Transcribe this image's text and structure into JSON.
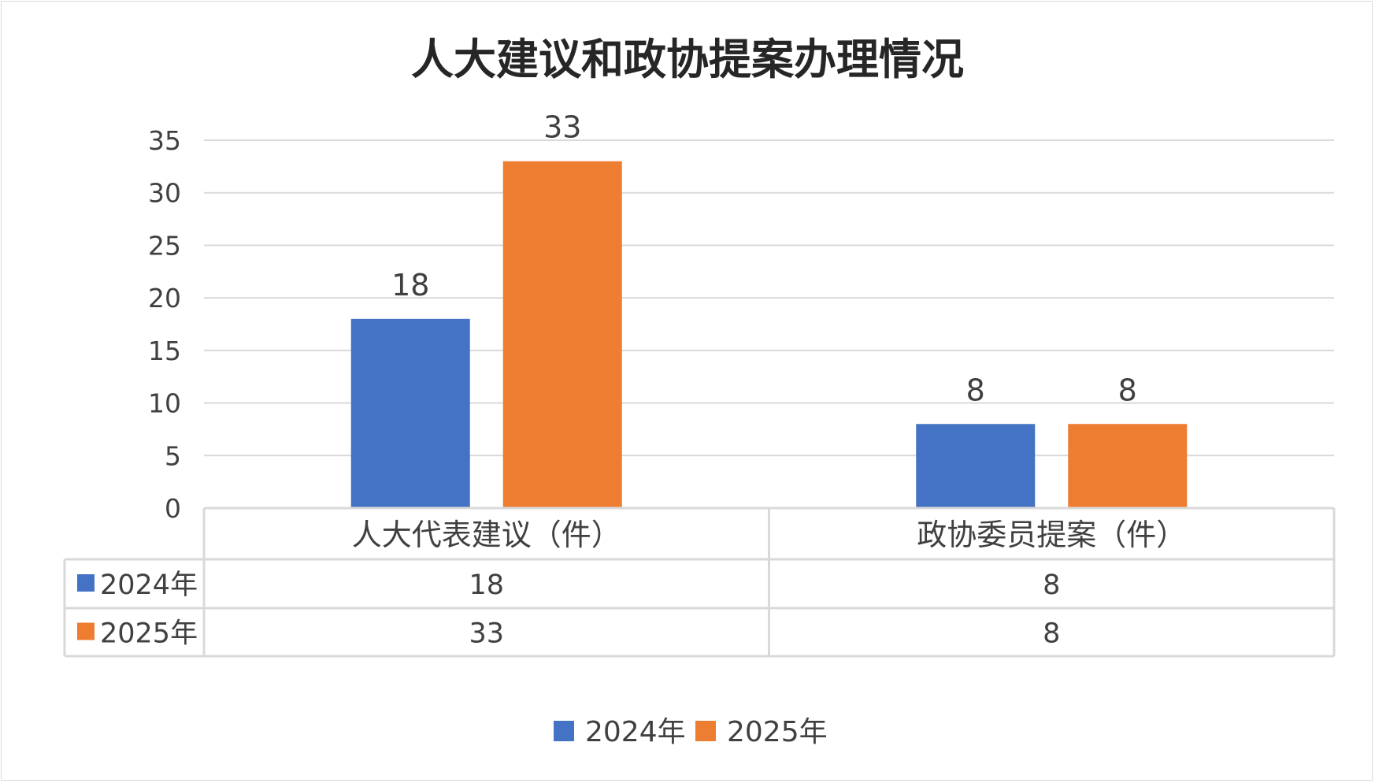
{
  "chart_data": {
    "type": "bar",
    "title": "人大建议和政协提案办理情况",
    "categories": [
      "人大代表建议（件）",
      "政协委员提案（件）"
    ],
    "series": [
      {
        "name": "2024年",
        "values": [
          18,
          8
        ],
        "color": "#4472C4"
      },
      {
        "name": "2025年",
        "values": [
          33,
          8
        ],
        "color": "#ED7D31"
      }
    ],
    "ylim": [
      0,
      35
    ],
    "yticks": [
      0,
      5,
      10,
      15,
      20,
      25,
      30,
      35
    ],
    "grid": true,
    "data_labels": true,
    "data_table": true,
    "legend_position": "bottom"
  }
}
